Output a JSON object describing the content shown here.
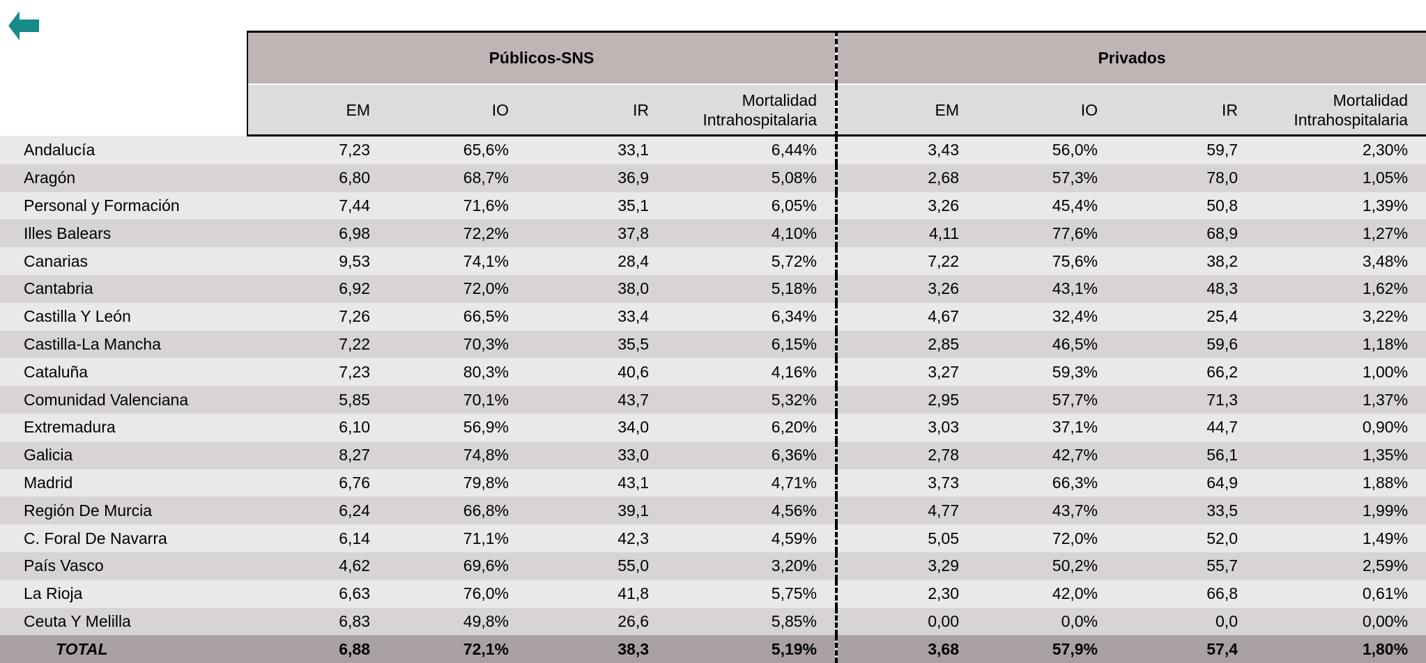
{
  "header": {
    "groups": [
      "Públicos-SNS",
      "Privados"
    ],
    "columns": [
      "EM",
      "IO",
      "IR",
      "Mortalidad Intrahospitalaria",
      "EM",
      "IO",
      "IR",
      "Mortalidad Intrahospitalaria"
    ]
  },
  "rows": [
    [
      "Andalucía",
      "7,23",
      "65,6%",
      "33,1",
      "6,44%",
      "3,43",
      "56,0%",
      "59,7",
      "2,30%"
    ],
    [
      "Aragón",
      "6,80",
      "68,7%",
      "36,9",
      "5,08%",
      "2,68",
      "57,3%",
      "78,0",
      "1,05%"
    ],
    [
      "Personal y Formación",
      "7,44",
      "71,6%",
      "35,1",
      "6,05%",
      "3,26",
      "45,4%",
      "50,8",
      "1,39%"
    ],
    [
      "Illes Balears",
      "6,98",
      "72,2%",
      "37,8",
      "4,10%",
      "4,11",
      "77,6%",
      "68,9",
      "1,27%"
    ],
    [
      "Canarias",
      "9,53",
      "74,1%",
      "28,4",
      "5,72%",
      "7,22",
      "75,6%",
      "38,2",
      "3,48%"
    ],
    [
      "Cantabria",
      "6,92",
      "72,0%",
      "38,0",
      "5,18%",
      "3,26",
      "43,1%",
      "48,3",
      "1,62%"
    ],
    [
      "Castilla Y León",
      "7,26",
      "66,5%",
      "33,4",
      "6,34%",
      "4,67",
      "32,4%",
      "25,4",
      "3,22%"
    ],
    [
      "Castilla-La Mancha",
      "7,22",
      "70,3%",
      "35,5",
      "6,15%",
      "2,85",
      "46,5%",
      "59,6",
      "1,18%"
    ],
    [
      "Cataluña",
      "7,23",
      "80,3%",
      "40,6",
      "4,16%",
      "3,27",
      "59,3%",
      "66,2",
      "1,00%"
    ],
    [
      "Comunidad Valenciana",
      "5,85",
      "70,1%",
      "43,7",
      "5,32%",
      "2,95",
      "57,7%",
      "71,3",
      "1,37%"
    ],
    [
      "Extremadura",
      "6,10",
      "56,9%",
      "34,0",
      "6,20%",
      "3,03",
      "37,1%",
      "44,7",
      "0,90%"
    ],
    [
      "Galicia",
      "8,27",
      "74,8%",
      "33,0",
      "6,36%",
      "2,78",
      "42,7%",
      "56,1",
      "1,35%"
    ],
    [
      "Madrid",
      "6,76",
      "79,8%",
      "43,1",
      "4,71%",
      "3,73",
      "66,3%",
      "64,9",
      "1,88%"
    ],
    [
      "Región De Murcia",
      "6,24",
      "66,8%",
      "39,1",
      "4,56%",
      "4,77",
      "43,7%",
      "33,5",
      "1,99%"
    ],
    [
      "C. Foral De Navarra",
      "6,14",
      "71,1%",
      "42,3",
      "4,59%",
      "5,05",
      "72,0%",
      "52,0",
      "1,49%"
    ],
    [
      "País Vasco",
      "4,62",
      "69,6%",
      "55,0",
      "3,20%",
      "3,29",
      "50,2%",
      "55,7",
      "2,59%"
    ],
    [
      "La Rioja",
      "6,63",
      "76,0%",
      "41,8",
      "5,75%",
      "2,30",
      "42,0%",
      "66,8",
      "0,61%"
    ],
    [
      "Ceuta Y Melilla",
      "6,83",
      "49,8%",
      "26,6",
      "5,85%",
      "0,00",
      "0,0%",
      "0,0",
      "0,00%"
    ]
  ],
  "total": [
    "TOTAL",
    "6,88",
    "72,1%",
    "38,3",
    "5,19%",
    "3,68",
    "57,9%",
    "57,4",
    "1,80%"
  ]
}
